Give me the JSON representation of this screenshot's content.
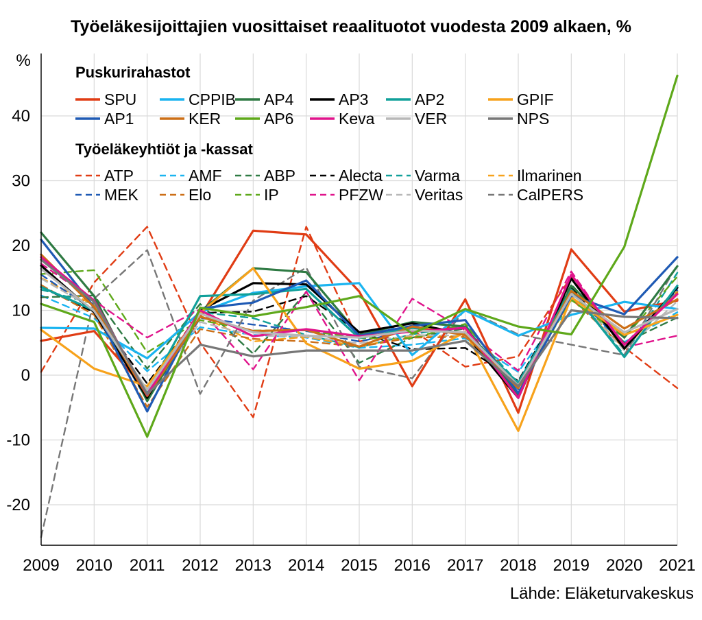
{
  "chart_data": {
    "type": "line",
    "title": "Työeläkesijoittajien vuosittaiset reaalituotot vuodesta 2009 alkaen, %",
    "ylabel": "%",
    "xlabel": "",
    "source": "Lähde: Eläketurvakeskus",
    "x": [
      "2009",
      "2010",
      "2011",
      "2012",
      "2013",
      "2014",
      "2015",
      "2016",
      "2017",
      "2018",
      "2019",
      "2020",
      "2021"
    ],
    "ylim": [
      -26,
      50
    ],
    "yticks": [
      -20,
      -10,
      0,
      10,
      20,
      30,
      40
    ],
    "grid": true,
    "legend_position": "top",
    "groups": [
      {
        "heading": "Puskurirahastot",
        "dashed": false,
        "series_range": [
          0,
          12
        ]
      },
      {
        "heading": "Työeläkeyhtiöt ja -kassat",
        "dashed": true,
        "series_range": [
          12,
          24
        ]
      }
    ],
    "series": [
      {
        "name": "SPU",
        "color": "#e03c14",
        "dashed": false,
        "values": [
          5.3,
          6.8,
          -2.5,
          9.0,
          22.3,
          21.7,
          12.9,
          -1.7,
          11.7,
          -5.8,
          19.4,
          9.8,
          11.5
        ]
      },
      {
        "name": "CPPIB",
        "color": "#1ab4f0",
        "dashed": false,
        "values": [
          7.3,
          7.2,
          2.6,
          9.7,
          12.7,
          13.7,
          14.2,
          3.1,
          10.0,
          6.1,
          9.3,
          11.3,
          10.2
        ]
      },
      {
        "name": "AP4",
        "color": "#2e7a43",
        "dashed": false,
        "values": [
          22.0,
          12.2,
          -4.0,
          9.8,
          16.5,
          15.9,
          6.2,
          8.2,
          7.5,
          -3.2,
          13.8,
          5.8,
          16.8
        ]
      },
      {
        "name": "AP3",
        "color": "#000000",
        "dashed": false,
        "values": [
          16.9,
          9.7,
          -3.5,
          10.0,
          14.2,
          14.0,
          6.6,
          8.0,
          6.3,
          -3.5,
          14.9,
          4.1,
          13.5
        ]
      },
      {
        "name": "AP2",
        "color": "#11a09a",
        "dashed": false,
        "values": [
          13.6,
          10.0,
          -2.7,
          12.2,
          12.5,
          13.3,
          5.7,
          7.3,
          6.5,
          -1.2,
          13.2,
          2.8,
          13.8
        ]
      },
      {
        "name": "GPIF",
        "color": "#f7a21b",
        "dashed": false,
        "values": [
          7.0,
          1.0,
          -1.7,
          9.6,
          16.5,
          4.9,
          1.0,
          2.2,
          6.7,
          -8.6,
          12.0,
          6.2,
          9.3
        ]
      },
      {
        "name": "AP1",
        "color": "#1f5ab4",
        "dashed": false,
        "values": [
          20.9,
          10.5,
          -5.6,
          10.3,
          11.2,
          14.6,
          6.1,
          7.6,
          8.5,
          -2.8,
          12.3,
          9.4,
          18.2
        ]
      },
      {
        "name": "KER",
        "color": "#cc6f17",
        "dashed": false,
        "values": [
          18.6,
          10.5,
          -3.2,
          9.0,
          6.8,
          7.0,
          4.4,
          7.5,
          6.2,
          -2.0,
          13.0,
          7.2,
          11.7
        ]
      },
      {
        "name": "AP6",
        "color": "#5ea81a",
        "dashed": false,
        "values": [
          11.0,
          8.2,
          -9.5,
          10.4,
          9.1,
          10.5,
          12.2,
          6.4,
          10.2,
          7.5,
          6.3,
          19.8,
          46.2
        ]
      },
      {
        "name": "Keva",
        "color": "#e0148c",
        "dashed": false,
        "values": [
          18.2,
          11.5,
          -3.0,
          10.0,
          6.0,
          7.1,
          6.0,
          6.7,
          7.3,
          -3.5,
          15.5,
          4.7,
          12.5
        ]
      },
      {
        "name": "VER",
        "color": "#b8b8b8",
        "dashed": false,
        "values": [
          16.4,
          9.9,
          -2.3,
          9.5,
          6.6,
          6.1,
          5.8,
          6.9,
          6.6,
          -1.6,
          12.5,
          6.6,
          10.2
        ]
      },
      {
        "name": "NPS",
        "color": "#777777",
        "dashed": false,
        "values": [
          17.8,
          11.3,
          -2.9,
          4.7,
          2.9,
          3.8,
          3.8,
          3.8,
          5.3,
          -1.7,
          10.0,
          9.0,
          8.8
        ]
      },
      {
        "name": "ATP",
        "color": "#e03c14",
        "dashed": true,
        "values": [
          0.5,
          14.3,
          22.9,
          5.0,
          -6.5,
          22.9,
          5.2,
          7.0,
          1.3,
          2.9,
          15.2,
          4.3,
          -2.0
        ]
      },
      {
        "name": "AMF",
        "color": "#1ab4f0",
        "dashed": true,
        "values": [
          12.3,
          8.8,
          0.6,
          7.4,
          6.2,
          5.8,
          4.2,
          4.7,
          5.7,
          0.5,
          11.7,
          5.1,
          9.7
        ]
      },
      {
        "name": "ABP",
        "color": "#2e7a43",
        "dashed": true,
        "values": [
          12.0,
          12.3,
          1.0,
          11.0,
          3.3,
          12.8,
          1.9,
          5.8,
          7.2,
          -2.0,
          14.0,
          5.0,
          8.9
        ]
      },
      {
        "name": "Alecta",
        "color": "#000000",
        "dashed": true,
        "values": [
          13.6,
          9.7,
          -1.3,
          9.6,
          9.8,
          12.2,
          6.6,
          4.0,
          4.2,
          -0.9,
          13.5,
          4.5,
          12.9
        ]
      },
      {
        "name": "Varma",
        "color": "#11a09a",
        "dashed": true,
        "values": [
          13.2,
          11.0,
          -3.4,
          9.7,
          8.8,
          6.2,
          4.3,
          6.3,
          7.7,
          -1.2,
          13.3,
          3.1,
          15.8
        ]
      },
      {
        "name": "Ilmarinen",
        "color": "#f7a21b",
        "dashed": true,
        "values": [
          15.0,
          10.8,
          -3.6,
          9.2,
          5.2,
          5.9,
          4.4,
          6.1,
          6.0,
          -1.8,
          12.8,
          4.0,
          12.9
        ]
      },
      {
        "name": "MEK",
        "color": "#1f5ab4",
        "dashed": true,
        "values": [
          15.5,
          10.0,
          -3.9,
          8.8,
          7.8,
          6.8,
          5.2,
          6.9,
          6.6,
          -2.2,
          12.9,
          4.7,
          13.1
        ]
      },
      {
        "name": "Elo",
        "color": "#cc6f17",
        "dashed": true,
        "values": [
          13.9,
          9.3,
          -4.9,
          7.1,
          5.6,
          5.2,
          4.4,
          5.8,
          5.9,
          -2.1,
          11.8,
          4.2,
          12.7
        ]
      },
      {
        "name": "IP",
        "color": "#5ea81a",
        "dashed": true,
        "values": [
          15.6,
          16.2,
          3.5,
          8.5,
          6.9,
          6.9,
          5.7,
          5.7,
          7.9,
          -1.9,
          11.6,
          5.8,
          15.2
        ]
      },
      {
        "name": "PFZW",
        "color": "#e0148c",
        "dashed": true,
        "values": [
          17.2,
          11.5,
          5.8,
          10.2,
          0.9,
          12.9,
          -0.8,
          11.8,
          6.9,
          0.7,
          16.0,
          4.3,
          6.1
        ]
      },
      {
        "name": "Veritas",
        "color": "#b8b8b8",
        "dashed": true,
        "values": [
          14.9,
          10.2,
          -3.5,
          8.2,
          6.1,
          6.0,
          4.9,
          6.2,
          6.1,
          -2.0,
          12.8,
          3.8,
          11.4
        ]
      },
      {
        "name": "CalPERS",
        "color": "#777777",
        "dashed": true,
        "values": [
          -25.0,
          11.8,
          19.3,
          -2.9,
          11.5,
          16.6,
          1.3,
          -0.5,
          10.2,
          6.3,
          4.7,
          3.1,
          17.0
        ]
      }
    ]
  }
}
